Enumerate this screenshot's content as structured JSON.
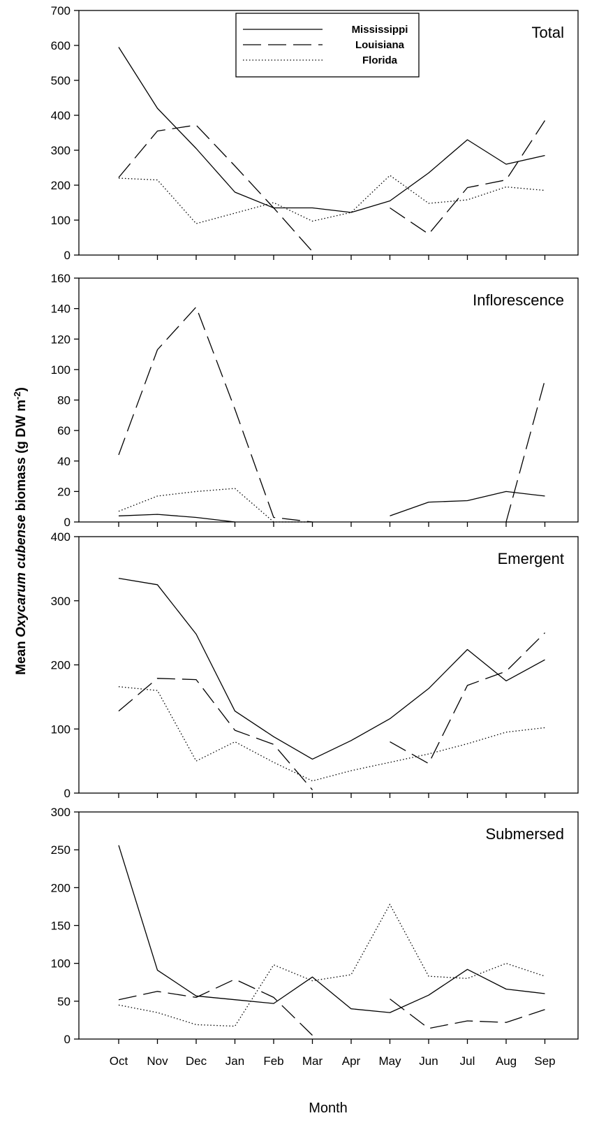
{
  "chart_data": {
    "type": "line",
    "categories": [
      "Oct",
      "Nov",
      "Dec",
      "Jan",
      "Feb",
      "Mar",
      "Apr",
      "May",
      "Jun",
      "Jul",
      "Aug",
      "Sep"
    ],
    "xlabel": "Month",
    "ylabel": {
      "prefix": "Mean ",
      "italic": "Oxycarum cubense",
      "suffix": " biomass (g DW m",
      "superscript": "-2",
      "close": ")"
    },
    "legend": {
      "placement": "top-center",
      "entries": [
        {
          "name": "Mississippi",
          "style": "solid"
        },
        {
          "name": "Louisiana",
          "style": "dashed"
        },
        {
          "name": "Florida",
          "style": "dotted"
        }
      ]
    },
    "panels": [
      {
        "title": "Total",
        "ylim": [
          0,
          700
        ],
        "yticks": [
          0,
          100,
          200,
          300,
          400,
          500,
          600,
          700
        ],
        "series": [
          {
            "name": "Mississippi",
            "style": "solid",
            "values": [
              595,
              420,
              305,
              180,
              135,
              135,
              122,
              155,
              235,
              330,
              260,
              285
            ]
          },
          {
            "name": "Louisiana",
            "style": "dashed",
            "values": [
              222,
              355,
              372,
              255,
              135,
              10,
              null,
              135,
              60,
              193,
              215,
              385
            ]
          },
          {
            "name": "Florida",
            "style": "dotted",
            "values": [
              220,
              215,
              90,
              120,
              150,
              97,
              122,
              228,
              148,
              158,
              195,
              185
            ]
          }
        ]
      },
      {
        "title": "Inflorescence",
        "ylim": [
          0,
          160
        ],
        "yticks": [
          0,
          20,
          40,
          60,
          80,
          100,
          120,
          140,
          160
        ],
        "series": [
          {
            "name": "Mississippi",
            "style": "solid",
            "values": [
              4,
              5,
              3,
              0,
              null,
              null,
              null,
              4,
              13,
              14,
              20,
              17
            ]
          },
          {
            "name": "Louisiana",
            "style": "dashed",
            "values": [
              44,
              113,
              141,
              74,
              3,
              0,
              null,
              null,
              null,
              null,
              0,
              93
            ]
          },
          {
            "name": "Florida",
            "style": "dotted",
            "values": [
              7,
              17,
              20,
              22,
              0,
              0,
              null,
              null,
              null,
              null,
              null,
              null
            ]
          }
        ]
      },
      {
        "title": "Emergent",
        "ylim": [
          0,
          400
        ],
        "yticks": [
          0,
          100,
          200,
          300,
          400
        ],
        "series": [
          {
            "name": "Mississippi",
            "style": "solid",
            "values": [
              335,
              325,
              248,
              128,
              88,
              53,
              82,
              116,
              163,
              224,
              175,
              208
            ]
          },
          {
            "name": "Louisiana",
            "style": "dashed",
            "values": [
              128,
              179,
              177,
              98,
              76,
              5,
              null,
              80,
              46,
              168,
              190,
              250
            ]
          },
          {
            "name": "Florida",
            "style": "dotted",
            "values": [
              166,
              160,
              50,
              80,
              48,
              19,
              35,
              48,
              61,
              77,
              95,
              102
            ]
          }
        ]
      },
      {
        "title": "Submersed",
        "ylim": [
          0,
          300
        ],
        "yticks": [
          0,
          50,
          100,
          150,
          200,
          250,
          300
        ],
        "series": [
          {
            "name": "Mississippi",
            "style": "solid",
            "values": [
              256,
              91,
              57,
              52,
              47,
              82,
              40,
              35,
              58,
              92,
              66,
              60
            ]
          },
          {
            "name": "Louisiana",
            "style": "dashed",
            "values": [
              52,
              63,
              55,
              79,
              55,
              5,
              null,
              53,
              14,
              24,
              22,
              39
            ]
          },
          {
            "name": "Florida",
            "style": "dotted",
            "values": [
              45,
              35,
              19,
              17,
              98,
              77,
              85,
              178,
              83,
              80,
              100,
              83
            ]
          }
        ]
      }
    ]
  }
}
